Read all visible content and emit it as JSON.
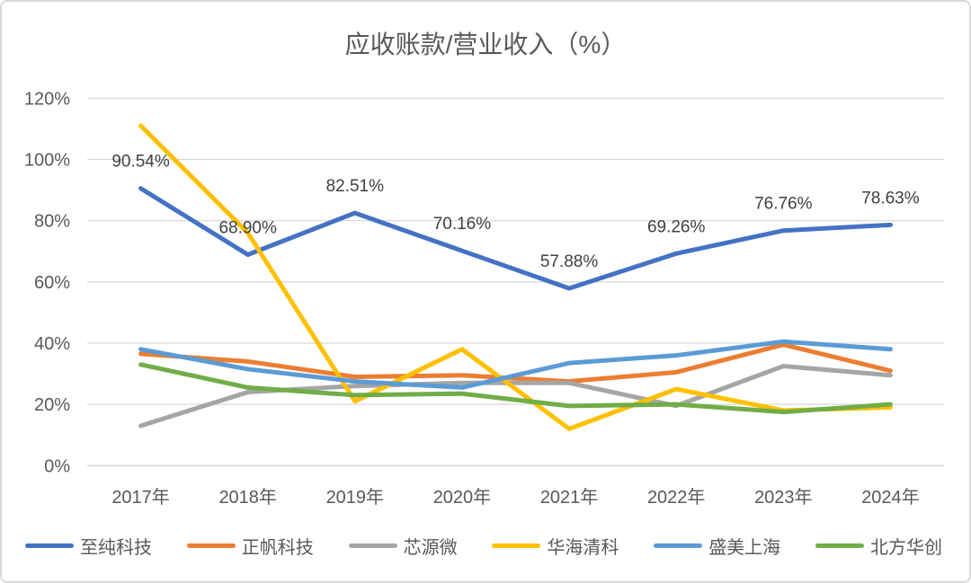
{
  "chart_data": {
    "type": "line",
    "title": "应收账款/营业收入（%）",
    "categories": [
      "2017年",
      "2018年",
      "2019年",
      "2020年",
      "2021年",
      "2022年",
      "2023年",
      "2024年"
    ],
    "xlabel": "",
    "ylabel": "",
    "ylim": [
      0,
      120
    ],
    "grid": true,
    "legend_position": "bottom",
    "y_ticks": [
      {
        "value": 0,
        "label": "0%"
      },
      {
        "value": 20,
        "label": "20%"
      },
      {
        "value": 40,
        "label": "40%"
      },
      {
        "value": 60,
        "label": "60%"
      },
      {
        "value": 80,
        "label": "80%"
      },
      {
        "value": 100,
        "label": "100%"
      },
      {
        "value": 120,
        "label": "120%"
      }
    ],
    "series": [
      {
        "name": "至纯科技",
        "color": "#4472C4",
        "values": [
          90.54,
          68.9,
          82.51,
          70.16,
          57.88,
          69.26,
          76.76,
          78.63
        ],
        "data_labels": [
          "90.54%",
          "68.90%",
          "82.51%",
          "70.16%",
          "57.88%",
          "69.26%",
          "76.76%",
          "78.63%"
        ]
      },
      {
        "name": "正帆科技",
        "color": "#ED7D31",
        "values": [
          36.5,
          34,
          29,
          29.5,
          27.5,
          30.5,
          39.5,
          31
        ]
      },
      {
        "name": "芯源微",
        "color": "#A5A5A5",
        "values": [
          13,
          24,
          26,
          27,
          27,
          19.5,
          32.5,
          29.5
        ]
      },
      {
        "name": "华海清科",
        "color": "#FFC000",
        "values": [
          111,
          76,
          21,
          38,
          12,
          25,
          18,
          19
        ]
      },
      {
        "name": "盛美上海",
        "color": "#5B9BD5",
        "values": [
          38,
          31.5,
          27.5,
          25.5,
          33.5,
          36,
          40.5,
          38
        ]
      },
      {
        "name": "北方华创",
        "color": "#70AD47",
        "values": [
          33,
          25.5,
          23,
          23.5,
          19.5,
          20,
          17.5,
          20
        ]
      }
    ],
    "colors": {
      "gridline": "#d9d9d9",
      "axis_text": "#595959",
      "data_label_text": "#404040",
      "title_text": "#595959"
    }
  }
}
